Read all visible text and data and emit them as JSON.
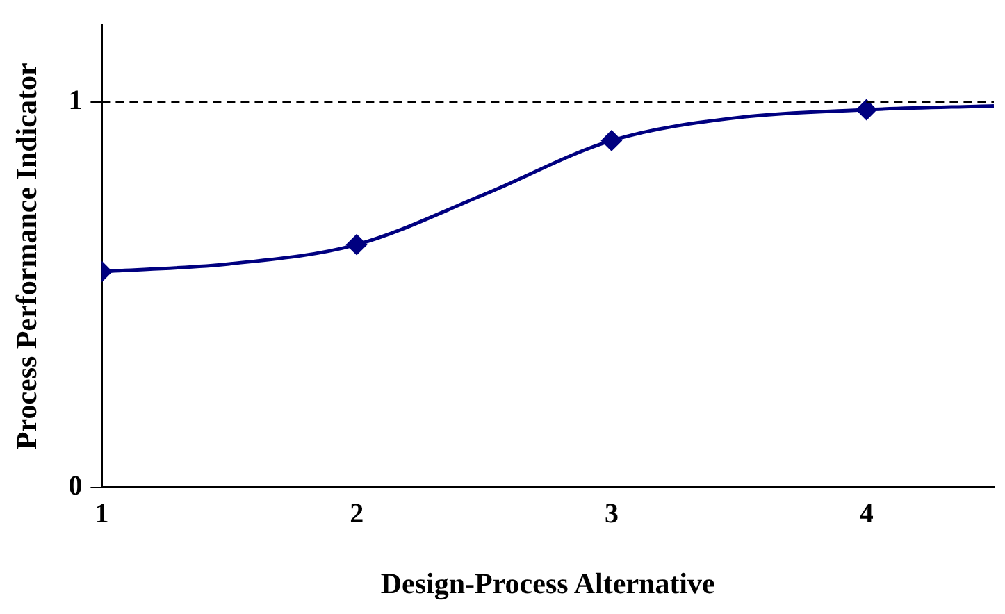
{
  "chart_data": {
    "type": "line",
    "xlabel": "Design-Process Alternative",
    "ylabel": "Process Performance Indicator",
    "xlim": [
      1,
      4.5
    ],
    "xticks": [
      1,
      2,
      3,
      4
    ],
    "ylim": [
      0,
      1.2
    ],
    "yticks": [
      0,
      1
    ],
    "grid": false,
    "legend": false,
    "series": [
      {
        "type": "line",
        "color": "#000080",
        "marker": "none",
        "x": [
          1,
          1.5,
          2,
          2.5,
          3,
          3.5,
          4,
          4.5
        ],
        "values": [
          0.56,
          0.58,
          0.63,
          0.76,
          0.9,
          0.96,
          0.98,
          0.99
        ]
      },
      {
        "type": "scatter",
        "color": "#000080",
        "marker": "diamond",
        "x": [
          1,
          2,
          3,
          4
        ],
        "values": [
          0.56,
          0.63,
          0.9,
          0.98
        ]
      }
    ],
    "ref_lines": [
      {
        "axis": "y",
        "value": 1,
        "line_style": "dashed",
        "color": "#000000"
      }
    ]
  }
}
